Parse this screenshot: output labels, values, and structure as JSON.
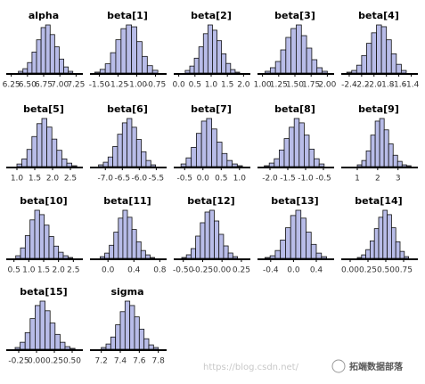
{
  "chart_data": [
    {
      "type": "histogram",
      "title": "alpha",
      "color": "#b8bce8",
      "bins": [
        6.36,
        6.43,
        6.5,
        6.57,
        6.64,
        6.71,
        6.78,
        6.85,
        6.92,
        6.99,
        7.06,
        7.13,
        7.2
      ],
      "values": [
        2,
        5,
        12,
        24,
        38,
        52,
        55,
        44,
        30,
        16,
        7,
        2
      ],
      "xlim": [
        6.2,
        7.3
      ],
      "xticks": [
        6.25,
        {
          "value": 6.5,
          "label": "6.50"
        },
        6.75,
        {
          "value": 7,
          "label": "7.00"
        },
        7.25
      ]
    },
    {
      "type": "histogram",
      "title": "beta[1]",
      "color": "#b8bce8",
      "bins": [
        -1.56,
        -1.49,
        -1.42,
        -1.35,
        -1.28,
        -1.21,
        -1.14,
        -1.07,
        -1.0,
        -0.93,
        -0.86,
        -0.79,
        -0.72
      ],
      "values": [
        1,
        4,
        10,
        22,
        36,
        48,
        52,
        50,
        34,
        18,
        8,
        3
      ],
      "xlim": [
        -1.6,
        -0.65
      ],
      "xticks": [
        {
          "value": -1.5,
          "label": "-1.50"
        },
        -1.25,
        {
          "value": -1,
          "label": "-1.00"
        },
        -0.75
      ]
    },
    {
      "type": "histogram",
      "title": "beta[2]",
      "color": "#b8bce8",
      "bins": [
        0.2,
        0.34,
        0.48,
        0.62,
        0.76,
        0.9,
        1.04,
        1.18,
        1.32,
        1.46,
        1.6,
        1.74,
        1.88
      ],
      "values": [
        3,
        8,
        17,
        30,
        45,
        55,
        49,
        37,
        22,
        11,
        4,
        1
      ],
      "xlim": [
        -0.1,
        2.1
      ],
      "xticks": [
        {
          "value": 0,
          "label": "0.0"
        },
        0.5,
        {
          "value": 1,
          "label": "1.0"
        },
        1.5,
        {
          "value": 2,
          "label": "2.0"
        }
      ]
    },
    {
      "type": "histogram",
      "title": "beta[3]",
      "color": "#b8bce8",
      "bins": [
        1.04,
        1.12,
        1.2,
        1.28,
        1.36,
        1.44,
        1.52,
        1.6,
        1.68,
        1.76,
        1.84,
        1.92,
        2.0
      ],
      "values": [
        2,
        6,
        13,
        26,
        40,
        50,
        54,
        42,
        28,
        15,
        6,
        2
      ],
      "xlim": [
        0.95,
        2.05
      ],
      "xticks": [
        {
          "value": 1,
          "label": "1.00"
        },
        1.25,
        {
          "value": 1.5,
          "label": "1.50"
        },
        1.75,
        {
          "value": 2,
          "label": "2.00"
        }
      ]
    },
    {
      "type": "histogram",
      "title": "beta[4]",
      "color": "#b8bce8",
      "bins": [
        -2.44,
        -2.36,
        -2.28,
        -2.2,
        -2.12,
        -2.04,
        -1.96,
        -1.88,
        -1.8,
        -1.72,
        -1.64,
        -1.56,
        -1.48
      ],
      "values": [
        1,
        3,
        9,
        20,
        34,
        46,
        55,
        53,
        38,
        22,
        10,
        3
      ],
      "xlim": [
        -2.5,
        -1.35
      ],
      "xticks": [
        -2.4,
        -2.2,
        {
          "value": -2,
          "label": "-2.0"
        },
        -1.8,
        -1.6,
        -1.4
      ]
    },
    {
      "type": "histogram",
      "title": "beta[5]",
      "color": "#b8bce8",
      "bins": [
        1.0,
        1.14,
        1.28,
        1.42,
        1.56,
        1.7,
        1.84,
        1.98,
        2.12,
        2.26,
        2.4,
        2.54,
        2.68
      ],
      "values": [
        3,
        9,
        20,
        35,
        50,
        56,
        46,
        32,
        19,
        9,
        4,
        1
      ],
      "xlim": [
        0.75,
        2.75
      ],
      "xticks": [
        {
          "value": 1,
          "label": "1.0"
        },
        1.5,
        {
          "value": 2,
          "label": "2.0"
        },
        2.5
      ]
    },
    {
      "type": "histogram",
      "title": "beta[6]",
      "color": "#b8bce8",
      "bins": [
        -7.2,
        -7.06,
        -6.92,
        -6.78,
        -6.64,
        -6.5,
        -6.36,
        -6.22,
        -6.08,
        -5.94,
        -5.8,
        -5.66,
        -5.52
      ],
      "values": [
        2,
        5,
        11,
        23,
        37,
        50,
        55,
        45,
        31,
        17,
        7,
        2
      ],
      "xlim": [
        -7.4,
        -5.3
      ],
      "xticks": [
        {
          "value": -7,
          "label": "-7.0"
        },
        -6.5,
        {
          "value": -6,
          "label": "-6.0"
        },
        -5.5
      ]
    },
    {
      "type": "histogram",
      "title": "beta[7]",
      "color": "#b8bce8",
      "bins": [
        -0.6,
        -0.46,
        -0.32,
        -0.18,
        -0.04,
        0.1,
        0.24,
        0.38,
        0.52,
        0.66,
        0.8,
        0.94,
        1.08
      ],
      "values": [
        3,
        10,
        22,
        38,
        52,
        55,
        43,
        28,
        15,
        7,
        3,
        1
      ],
      "xlim": [
        -0.75,
        1.2
      ],
      "xticks": [
        -0.5,
        {
          "value": 0,
          "label": "0.0"
        },
        0.5,
        {
          "value": 1,
          "label": "1.0"
        }
      ]
    },
    {
      "type": "histogram",
      "title": "beta[8]",
      "color": "#b8bce8",
      "bins": [
        -2.16,
        -2.02,
        -1.88,
        -1.74,
        -1.6,
        -1.46,
        -1.32,
        -1.18,
        -1.04,
        -0.9,
        -0.76,
        -0.62,
        -0.48
      ],
      "values": [
        1,
        4,
        9,
        19,
        32,
        45,
        55,
        50,
        36,
        20,
        9,
        3
      ],
      "xlim": [
        -2.3,
        -0.3
      ],
      "xticks": [
        {
          "value": -2,
          "label": "-2.0"
        },
        -1.5,
        {
          "value": -1,
          "label": "-1.0"
        },
        -0.5
      ]
    },
    {
      "type": "histogram",
      "title": "beta[9]",
      "color": "#b8bce8",
      "bins": [
        1.0,
        1.22,
        1.44,
        1.66,
        1.88,
        2.1,
        2.32,
        2.54,
        2.76,
        2.98,
        3.2,
        3.42,
        3.64
      ],
      "values": [
        2,
        7,
        18,
        36,
        52,
        55,
        42,
        26,
        13,
        6,
        2,
        1
      ],
      "xlim": [
        0.3,
        3.8
      ],
      "xticks": [
        1,
        2,
        3
      ]
    },
    {
      "type": "histogram",
      "title": "beta[10]",
      "color": "#b8bce8",
      "bins": [
        0.56,
        0.72,
        0.88,
        1.04,
        1.2,
        1.36,
        1.52,
        1.68,
        1.84,
        2.0,
        2.16,
        2.32,
        2.48
      ],
      "values": [
        3,
        12,
        26,
        44,
        55,
        50,
        38,
        25,
        14,
        7,
        3,
        1
      ],
      "xlim": [
        0.3,
        2.7
      ],
      "xticks": [
        0.5,
        {
          "value": 1,
          "label": "1.0"
        },
        1.5,
        {
          "value": 2,
          "label": "2.0"
        },
        2.5
      ]
    },
    {
      "type": "histogram",
      "title": "beta[11]",
      "color": "#b8bce8",
      "bins": [
        -0.12,
        -0.05,
        0.02,
        0.09,
        0.16,
        0.23,
        0.3,
        0.37,
        0.44,
        0.51,
        0.58,
        0.65,
        0.72
      ],
      "values": [
        2,
        6,
        15,
        30,
        46,
        55,
        47,
        33,
        19,
        9,
        4,
        1
      ],
      "xlim": [
        -0.25,
        0.85
      ],
      "xticks": [
        {
          "value": 0,
          "label": "0.0"
        },
        0.4,
        0.8
      ]
    },
    {
      "type": "histogram",
      "title": "beta[12]",
      "color": "#b8bce8",
      "bins": [
        -0.52,
        -0.46,
        -0.4,
        -0.34,
        -0.28,
        -0.22,
        -0.16,
        -0.1,
        -0.04,
        0.02,
        0.08,
        0.14,
        0.2
      ],
      "values": [
        1,
        4,
        11,
        25,
        40,
        52,
        54,
        42,
        27,
        14,
        6,
        2
      ],
      "xlim": [
        -0.6,
        0.32
      ],
      "xticks": [
        {
          "value": -0.5,
          "label": "-0.50"
        },
        -0.25,
        {
          "value": 0,
          "label": "0.00"
        },
        0.25
      ]
    },
    {
      "type": "histogram",
      "title": "beta[13]",
      "color": "#b8bce8",
      "bins": [
        -0.5,
        -0.41,
        -0.32,
        -0.23,
        -0.14,
        -0.05,
        0.04,
        0.13,
        0.22,
        0.31,
        0.4,
        0.49,
        0.58
      ],
      "values": [
        1,
        3,
        9,
        21,
        35,
        49,
        55,
        46,
        30,
        16,
        6,
        2
      ],
      "xlim": [
        -0.6,
        0.65
      ],
      "xticks": [
        -0.4,
        {
          "value": 0,
          "label": "0.0"
        },
        0.4
      ]
    },
    {
      "type": "histogram",
      "title": "beta[14]",
      "color": "#b8bce8",
      "bins": [
        0.1,
        0.16,
        0.22,
        0.28,
        0.34,
        0.4,
        0.46,
        0.52,
        0.58,
        0.64,
        0.7,
        0.76,
        0.82
      ],
      "values": [
        1,
        4,
        10,
        20,
        34,
        47,
        55,
        50,
        35,
        19,
        8,
        2
      ],
      "xlim": [
        -0.1,
        0.9
      ],
      "xticks": [
        {
          "value": 0,
          "label": "0.00"
        },
        0.25,
        {
          "value": 0.5,
          "label": "0.50"
        },
        0.75
      ]
    },
    {
      "type": "histogram",
      "title": "beta[15]",
      "color": "#b8bce8",
      "bins": [
        -0.3,
        -0.23,
        -0.16,
        -0.09,
        -0.02,
        0.05,
        0.12,
        0.19,
        0.26,
        0.33,
        0.4,
        0.47,
        0.54
      ],
      "values": [
        2,
        8,
        19,
        35,
        50,
        55,
        44,
        30,
        17,
        8,
        3,
        1
      ],
      "xlim": [
        -0.4,
        0.6
      ],
      "xticks": [
        -0.25,
        {
          "value": 0,
          "label": "0.00"
        },
        0.25,
        {
          "value": 0.5,
          "label": "0.50"
        }
      ]
    },
    {
      "type": "histogram",
      "title": "sigma",
      "color": "#b8bce8",
      "bins": [
        7.2,
        7.25,
        7.3,
        7.35,
        7.4,
        7.45,
        7.5,
        7.55,
        7.6,
        7.65,
        7.7,
        7.75,
        7.8
      ],
      "values": [
        2,
        6,
        14,
        28,
        43,
        55,
        50,
        37,
        23,
        12,
        5,
        2
      ],
      "xlim": [
        7.1,
        7.85
      ],
      "xticks": [
        7.2,
        7.4,
        7.6,
        7.8
      ]
    }
  ],
  "watermark": {
    "url": "https://blog.csdn.net/",
    "brand": "拓端数据部落"
  }
}
